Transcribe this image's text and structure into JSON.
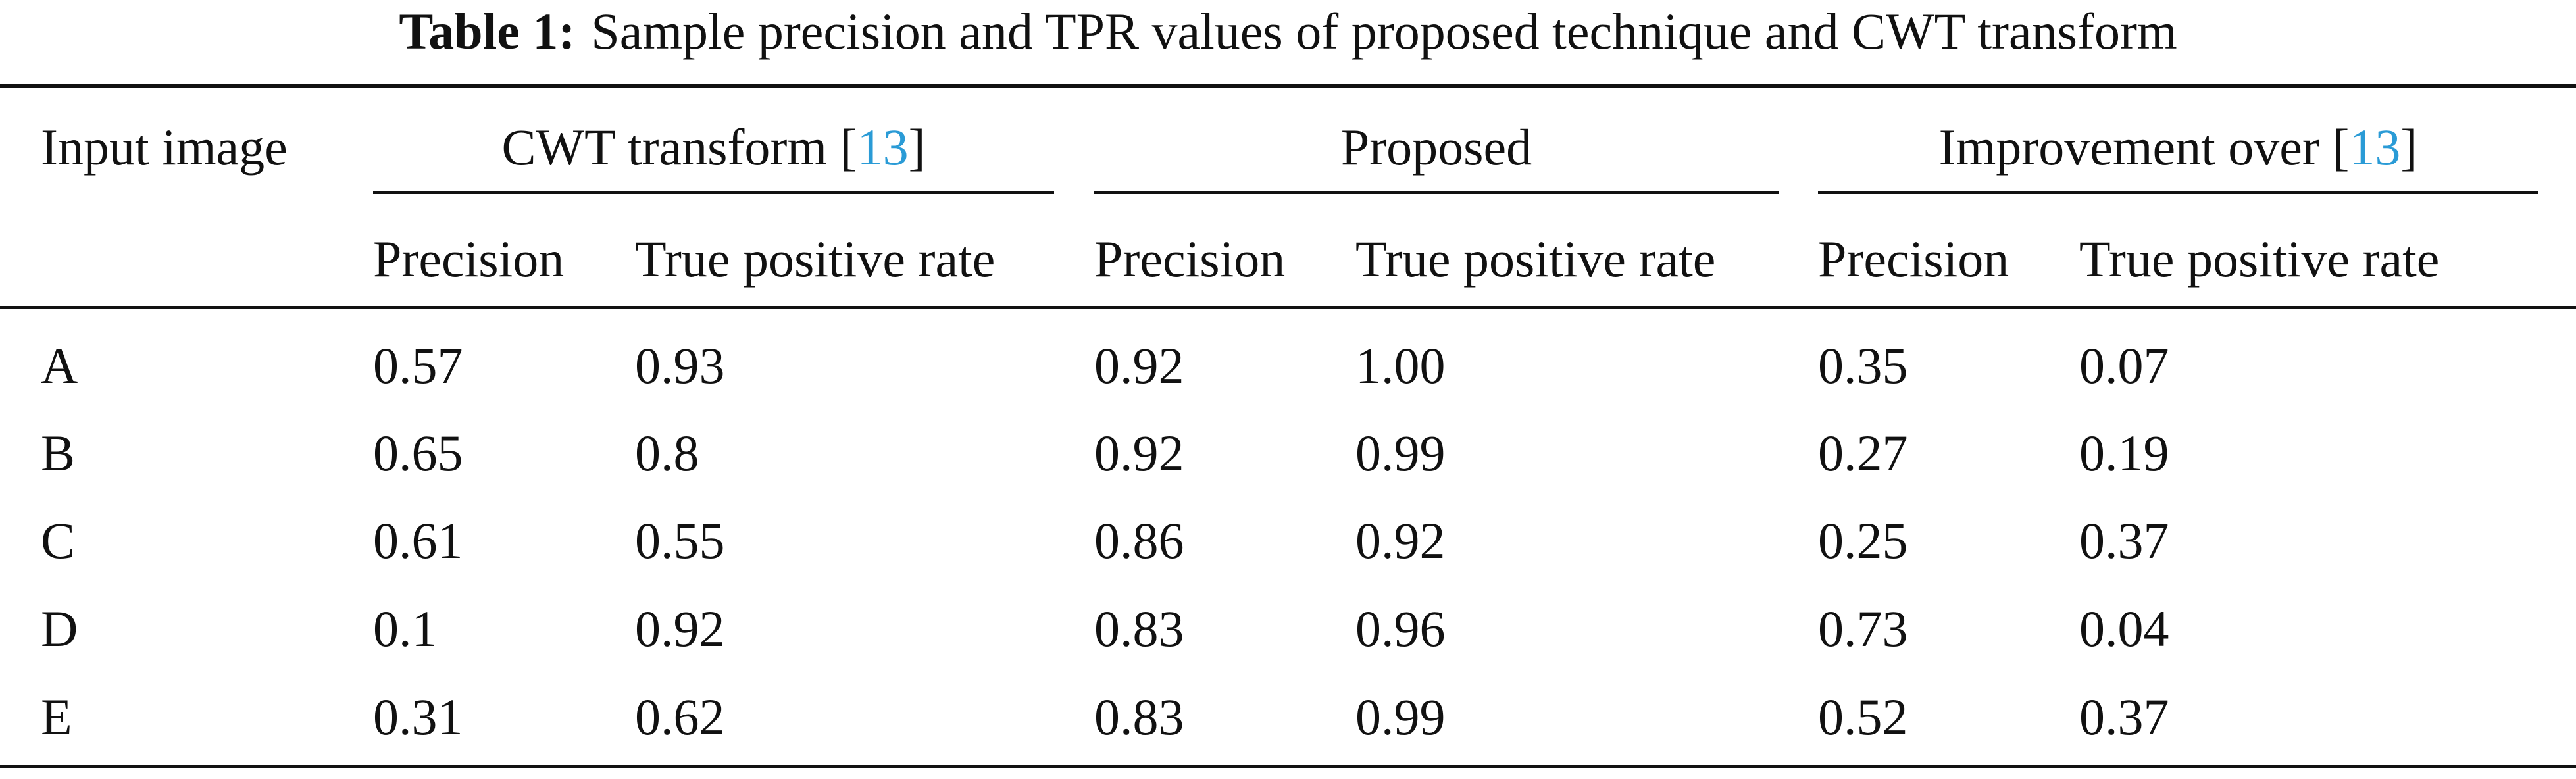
{
  "caption": {
    "label": "Table 1:",
    "text": "Sample precision and TPR values of proposed technique and CWT transform"
  },
  "header": {
    "row_label": "Input image",
    "groups": [
      {
        "prefix": "CWT transform [",
        "cite": "13",
        "suffix": "]"
      },
      {
        "prefix": "Proposed",
        "cite": "",
        "suffix": ""
      },
      {
        "prefix": "Improvement over [",
        "cite": "13",
        "suffix": "]"
      }
    ],
    "subcolumns": [
      "Precision",
      "True positive rate",
      "Precision",
      "True positive rate",
      "Precision",
      "True positive rate"
    ]
  },
  "rows": [
    {
      "label": "A",
      "values": [
        "0.57",
        "0.93",
        "0.92",
        "1.00",
        "0.35",
        "0.07"
      ]
    },
    {
      "label": "B",
      "values": [
        "0.65",
        "0.8",
        "0.92",
        "0.99",
        "0.27",
        "0.19"
      ]
    },
    {
      "label": "C",
      "values": [
        "0.61",
        "0.55",
        "0.86",
        "0.92",
        "0.25",
        "0.37"
      ]
    },
    {
      "label": "D",
      "values": [
        "0.1",
        "0.92",
        "0.83",
        "0.96",
        "0.73",
        "0.04"
      ]
    },
    {
      "label": "E",
      "values": [
        "0.31",
        "0.62",
        "0.83",
        "0.99",
        "0.52",
        "0.37"
      ]
    }
  ],
  "colors": {
    "text": "#111111",
    "citation": "#2a9bd6"
  }
}
